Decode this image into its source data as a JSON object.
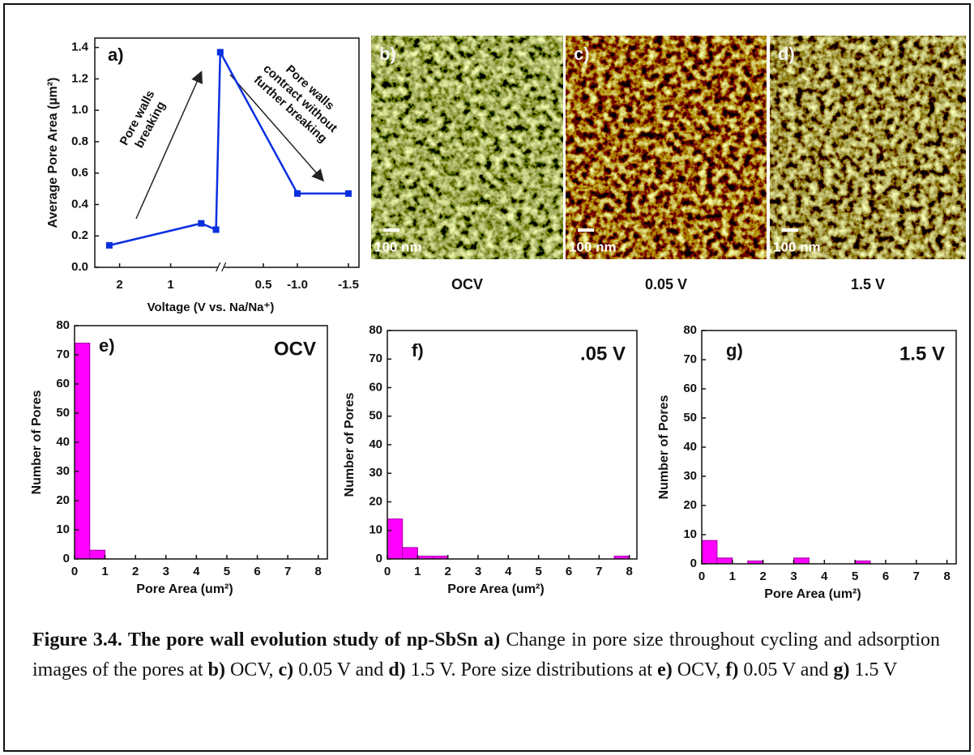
{
  "chart_data": [
    {
      "type": "line",
      "panel": "a)",
      "ylabel": "Average Pore Area (µm²)",
      "xlabel": "Voltage (V vs. Na/Na⁺)",
      "annotations": [
        [
          "Pore walls",
          "breaking"
        ],
        [
          "Pore walls",
          "contract without",
          "further breaking"
        ]
      ],
      "x": [
        2.3,
        0.66,
        0.54,
        0.51,
        -1.0,
        -1.5
      ],
      "series": [
        {
          "color": "#0a2fe0",
          "values": [
            0.14,
            0.28,
            0.24,
            1.37,
            0.47,
            0.47
          ]
        }
      ],
      "xlim": [
        2.8,
        -1.6
      ],
      "xticks": [
        2,
        1,
        0.5,
        {
          "value": -1,
          "label": "-1.0"
        },
        -1.5
      ],
      "xbreak": 0.505,
      "ylim": [
        0,
        1.46
      ],
      "yticks": [
        {
          "value": 0,
          "label": "0.0"
        },
        0.2,
        0.4,
        0.6,
        0.8,
        {
          "value": 1,
          "label": "1.0"
        },
        1.2,
        1.4
      ]
    },
    {
      "type": "histogram",
      "panel": "e)",
      "title": "OCV",
      "xlabel": "Pore Area (um²)",
      "ylabel": "Number of Pores",
      "color": "#ff00ff",
      "bins": [
        0,
        0.5,
        1,
        1.5,
        2,
        2.5,
        3,
        3.5,
        4,
        4.5,
        5,
        5.5,
        6,
        6.5,
        7,
        7.5,
        8
      ],
      "values": [
        74,
        3,
        0,
        0,
        0,
        0,
        0,
        0,
        0,
        0,
        0,
        0,
        0,
        0,
        0,
        0
      ],
      "xlim": [
        0,
        8.3
      ],
      "xticks": [
        0,
        1,
        2,
        3,
        4,
        5,
        6,
        7,
        8
      ],
      "ylim": [
        0,
        80
      ],
      "yticks": [
        0,
        10,
        20,
        30,
        40,
        50,
        60,
        70,
        80
      ]
    },
    {
      "type": "histogram",
      "panel": "f)",
      "title": ".05 V",
      "xlabel": "Pore Area (um²)",
      "ylabel": "Number of Pores",
      "color": "#ff00ff",
      "bins": [
        0,
        0.5,
        1,
        1.5,
        2,
        2.5,
        3,
        3.5,
        4,
        4.5,
        5,
        5.5,
        6,
        6.5,
        7,
        7.5,
        8
      ],
      "values": [
        14,
        4,
        1,
        1,
        0,
        0,
        0,
        0,
        0,
        0,
        0,
        0,
        0,
        0,
        0,
        1
      ],
      "xlim": [
        0,
        8.25
      ],
      "xticks": [
        0,
        1,
        2,
        3,
        4,
        5,
        6,
        7,
        8
      ],
      "ylim": [
        0,
        80
      ],
      "yticks": [
        0,
        10,
        20,
        30,
        40,
        50,
        60,
        70,
        80
      ]
    },
    {
      "type": "histogram",
      "panel": "g)",
      "title": "1.5 V",
      "xlabel": "Pore Area (um²)",
      "ylabel": "Number of Pores",
      "color": "#ff00ff",
      "bins": [
        0,
        0.5,
        1,
        1.5,
        2,
        2.5,
        3,
        3.5,
        4,
        4.5,
        5,
        5.5,
        6,
        6.5,
        7,
        7.5,
        8
      ],
      "values": [
        8,
        2,
        0,
        1,
        0,
        0,
        2,
        0,
        0,
        0,
        1,
        0,
        0,
        0,
        0,
        0
      ],
      "xlim": [
        0,
        8.3
      ],
      "xticks": [
        0,
        1,
        2,
        3,
        4,
        5,
        6,
        7,
        8
      ],
      "ylim": [
        0,
        80
      ],
      "yticks": [
        0,
        10,
        20,
        30,
        40,
        50,
        60,
        70,
        80
      ]
    }
  ],
  "images": [
    {
      "panel": "b)",
      "scale": "100 nm",
      "caption": "OCV"
    },
    {
      "panel": "c)",
      "scale": "100 nm",
      "caption": "0.05 V"
    },
    {
      "panel": "d)",
      "scale": "100 nm",
      "caption": "1.5 V"
    }
  ],
  "caption": [
    {
      "text": "Figure 3.4. The pore wall evolution study of np-SbSn a)",
      "bold": true
    },
    {
      "text": " Change in pore size throughout cycling and adsorption images of the pores at ",
      "bold": false
    },
    {
      "text": "b)",
      "bold": true
    },
    {
      "text": " OCV, ",
      "bold": false
    },
    {
      "text": "c)",
      "bold": true
    },
    {
      "text": " 0.05 V and ",
      "bold": false
    },
    {
      "text": "d)",
      "bold": true
    },
    {
      "text": " 1.5 V. Pore size distributions at ",
      "bold": false
    },
    {
      "text": "e)",
      "bold": true
    },
    {
      "text": " OCV, ",
      "bold": false
    },
    {
      "text": "f)",
      "bold": true
    },
    {
      "text": " 0.05 V and ",
      "bold": false
    },
    {
      "text": "g)",
      "bold": true
    },
    {
      "text": " 1.5 V",
      "bold": false
    }
  ]
}
